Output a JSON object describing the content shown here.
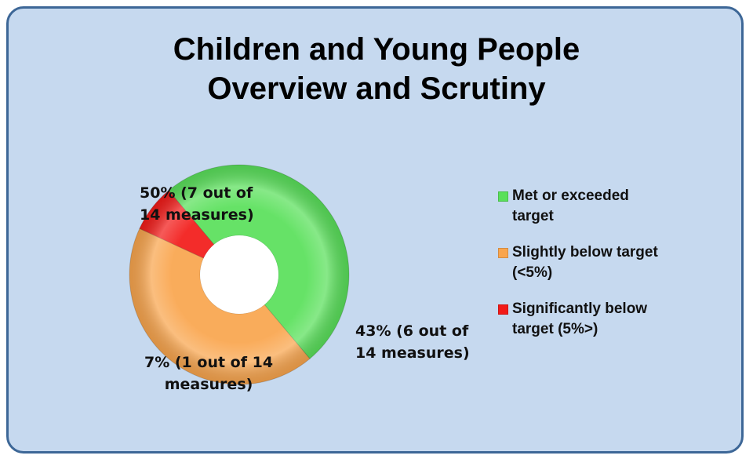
{
  "title": {
    "line1": "Children and Young People",
    "line2": "Overview and Scrutiny"
  },
  "chart_data": {
    "type": "pie",
    "donut": true,
    "categories": [
      "Met or exceeded target",
      "Slightly below target (<5%)",
      "Significantly below target (5%>)"
    ],
    "values": [
      50,
      43,
      7
    ],
    "colors": [
      "#59e05a",
      "#f9a54d",
      "#f21a18"
    ],
    "data_labels": [
      {
        "line1": "50% (7 out of",
        "line2": "14 measures)"
      },
      {
        "line1": "43% (6 out of",
        "line2": "14 measures)"
      },
      {
        "line1": "7% (1 out of 14",
        "line2": "measures)"
      }
    ],
    "legend": {
      "position": "right",
      "items": [
        {
          "line1": "Met or exceeded",
          "line2": "target"
        },
        {
          "line1": "Slightly below target",
          "line2": "(<5%)"
        },
        {
          "line1": "Significantly below",
          "line2": "target (5%>)"
        }
      ]
    }
  }
}
